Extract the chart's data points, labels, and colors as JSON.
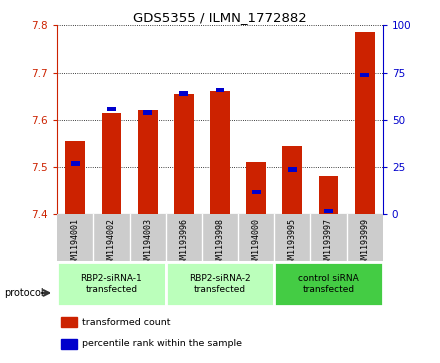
{
  "title": "GDS5355 / ILMN_1772882",
  "samples": [
    "GSM1194001",
    "GSM1194002",
    "GSM1194003",
    "GSM1193996",
    "GSM1193998",
    "GSM1194000",
    "GSM1193995",
    "GSM1193997",
    "GSM1193999"
  ],
  "red_values": [
    7.555,
    7.615,
    7.62,
    7.655,
    7.66,
    7.51,
    7.545,
    7.48,
    7.785
  ],
  "blue_values": [
    28,
    57,
    55,
    65,
    67,
    13,
    25,
    3,
    75
  ],
  "ylim_left": [
    7.4,
    7.8
  ],
  "ylim_right": [
    0,
    100
  ],
  "yticks_left": [
    7.4,
    7.5,
    7.6,
    7.7,
    7.8
  ],
  "yticks_right": [
    0,
    25,
    50,
    75,
    100
  ],
  "groups": [
    {
      "label": "RBP2-siRNA-1\ntransfected",
      "start": 0,
      "end": 3,
      "color": "#bbffbb"
    },
    {
      "label": "RBP2-siRNA-2\ntransfected",
      "start": 3,
      "end": 6,
      "color": "#bbffbb"
    },
    {
      "label": "control siRNA\ntransfected",
      "start": 6,
      "end": 9,
      "color": "#44cc44"
    }
  ],
  "legend_items": [
    {
      "label": "transformed count",
      "color": "#cc2200"
    },
    {
      "label": "percentile rank within the sample",
      "color": "#0000cc"
    }
  ],
  "bar_width": 0.55,
  "red_color": "#cc2200",
  "blue_color": "#0000cc",
  "bg_color": "#cccccc",
  "plot_bg": "#ffffff",
  "grid_color": "#000000",
  "protocol_label": "protocol",
  "left_tick_color": "#cc2200",
  "right_tick_color": "#0000cc"
}
